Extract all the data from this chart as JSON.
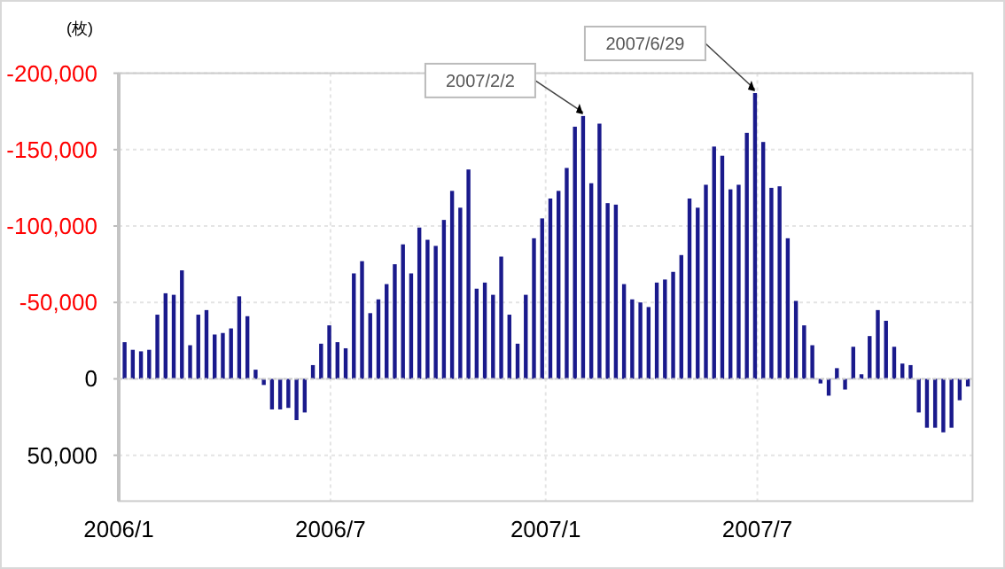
{
  "chart_data": {
    "type": "bar",
    "ylabel": "(枚)",
    "x": [
      "2006-01-06",
      "2006-01-13",
      "2006-01-20",
      "2006-01-27",
      "2006-02-03",
      "2006-02-10",
      "2006-02-17",
      "2006-02-24",
      "2006-03-03",
      "2006-03-10",
      "2006-03-17",
      "2006-03-24",
      "2006-03-31",
      "2006-04-07",
      "2006-04-14",
      "2006-04-21",
      "2006-04-28",
      "2006-05-05",
      "2006-05-12",
      "2006-05-19",
      "2006-05-26",
      "2006-06-02",
      "2006-06-09",
      "2006-06-16",
      "2006-06-23",
      "2006-06-30",
      "2006-07-07",
      "2006-07-14",
      "2006-07-21",
      "2006-07-28",
      "2006-08-04",
      "2006-08-11",
      "2006-08-18",
      "2006-08-25",
      "2006-09-01",
      "2006-09-08",
      "2006-09-15",
      "2006-09-22",
      "2006-09-29",
      "2006-10-06",
      "2006-10-13",
      "2006-10-20",
      "2006-10-27",
      "2006-11-03",
      "2006-11-10",
      "2006-11-17",
      "2006-11-24",
      "2006-12-01",
      "2006-12-08",
      "2006-12-15",
      "2006-12-22",
      "2006-12-29",
      "2007-01-05",
      "2007-01-12",
      "2007-01-19",
      "2007-01-26",
      "2007-02-02",
      "2007-02-09",
      "2007-02-16",
      "2007-02-23",
      "2007-03-02",
      "2007-03-09",
      "2007-03-16",
      "2007-03-23",
      "2007-03-30",
      "2007-04-06",
      "2007-04-13",
      "2007-04-20",
      "2007-04-27",
      "2007-05-04",
      "2007-05-11",
      "2007-05-18",
      "2007-05-25",
      "2007-06-01",
      "2007-06-08",
      "2007-06-15",
      "2007-06-22",
      "2007-06-29",
      "2007-07-06",
      "2007-07-13",
      "2007-07-20",
      "2007-07-27",
      "2007-08-03",
      "2007-08-10",
      "2007-08-17",
      "2007-08-24",
      "2007-08-31",
      "2007-09-07",
      "2007-09-14",
      "2007-09-21",
      "2007-09-28",
      "2007-10-05",
      "2007-10-12",
      "2007-10-19",
      "2007-10-26",
      "2007-11-02",
      "2007-11-09",
      "2007-11-16",
      "2007-11-23",
      "2007-11-30",
      "2007-12-07",
      "2007-12-14",
      "2007-12-21",
      "2007-12-28"
    ],
    "values": [
      -24000,
      -19000,
      -18000,
      -19000,
      -42000,
      -56000,
      -55000,
      -71000,
      -22000,
      -42000,
      -45000,
      -29000,
      -30000,
      -33000,
      -54000,
      -41000,
      -6000,
      4000,
      20000,
      20000,
      19000,
      27000,
      22000,
      -9000,
      -23000,
      -35000,
      -24000,
      -20000,
      -69000,
      -77000,
      -43000,
      -52000,
      -62000,
      -75000,
      -88000,
      -69000,
      -99000,
      -91000,
      -87000,
      -104000,
      -123000,
      -112000,
      -137000,
      -59000,
      -63000,
      -55000,
      -80000,
      -42000,
      -23000,
      -55000,
      -92000,
      -105000,
      -118000,
      -123000,
      -138000,
      -165000,
      -172000,
      -128000,
      -167000,
      -115000,
      -114000,
      -62000,
      -52000,
      -50000,
      -47000,
      -63000,
      -65000,
      -70000,
      -81000,
      -118000,
      -112000,
      -127000,
      -152000,
      -146000,
      -124000,
      -127000,
      -161000,
      -187000,
      -155000,
      -125000,
      -126000,
      -92000,
      -51000,
      -35000,
      -22000,
      3000,
      11000,
      -7000,
      7000,
      -21000,
      -3000,
      -28000,
      -45000,
      -38000,
      -21000,
      -10000,
      -9000,
      22000,
      32000,
      32000,
      35000,
      32000,
      14000,
      5000
    ],
    "color": "#1a1a8c",
    "xlim": [
      "2006-01-01",
      "2008-01-01"
    ],
    "xticks": [
      {
        "value": "2006-01-01",
        "label": "2006/1"
      },
      {
        "value": "2006-07-01",
        "label": "2006/7"
      },
      {
        "value": "2007-01-01",
        "label": "2007/1"
      },
      {
        "value": "2007-07-01",
        "label": "2007/7"
      }
    ],
    "ylim": [
      80000,
      -200000
    ],
    "yticks": [
      {
        "value": -200000,
        "label": "-200,000"
      },
      {
        "value": -150000,
        "label": "-150,000"
      },
      {
        "value": -100000,
        "label": "-100,000"
      },
      {
        "value": -50000,
        "label": "-50,000"
      },
      {
        "value": 0,
        "label": "0"
      },
      {
        "value": 50000,
        "label": "50,000"
      }
    ],
    "grid": true,
    "ref_lines": [
      {
        "axis": "y",
        "value": 0,
        "color": "#cfcfcf",
        "line_style": "dotted"
      }
    ],
    "annotations": [
      {
        "text": "2007/2/2",
        "x": "2007-02-02",
        "y": -172000
      },
      {
        "text": "2007/6/29",
        "x": "2007-06-29",
        "y": -187000
      }
    ]
  }
}
